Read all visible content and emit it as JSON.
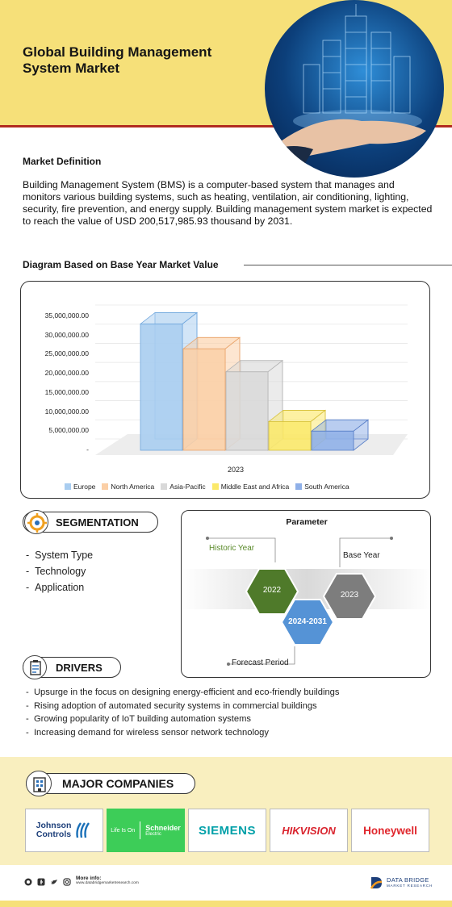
{
  "header": {
    "title_line1": "Global Building Management",
    "title_line2": "System Market"
  },
  "definition": {
    "heading": "Market Definition",
    "text": "Building Management System (BMS) is a computer-based system that manages and monitors various building systems, such as heating, ventilation, air conditioning, lighting, security, fire prevention, and energy supply. Building management system market is expected to reach the value of USD 200,517,985.93 thousand by 2031."
  },
  "diagram": {
    "heading": "Diagram Based on Base Year Market Value"
  },
  "chart_data": {
    "type": "bar",
    "categories": [
      "2023"
    ],
    "series": [
      {
        "name": "Europe",
        "values": [
          33000000
        ],
        "color": "#a9cdf0"
      },
      {
        "name": "North America",
        "values": [
          26500000
        ],
        "color": "#fbcfa6"
      },
      {
        "name": "Asia-Pacific",
        "values": [
          20500000
        ],
        "color": "#d9d9d9"
      },
      {
        "name": "Middle East and Africa",
        "values": [
          7500000
        ],
        "color": "#fbe96a"
      },
      {
        "name": "South America",
        "values": [
          5000000
        ],
        "color": "#8fb0e8"
      }
    ],
    "yticks": [
      "35,000,000.00",
      "30,000,000.00",
      "25,000,000.00",
      "20,000,000.00",
      "15,000,000.00",
      "10,000,000.00",
      "5,000,000.00",
      "-"
    ],
    "ylim": [
      0,
      35000000
    ],
    "legend_position": "bottom"
  },
  "segmentation": {
    "label": "SEGMENTATION",
    "items": [
      "System Type",
      "Technology",
      "Application"
    ]
  },
  "parameter": {
    "title": "Parameter",
    "historic_label": "Historic Year",
    "historic_value": "2022",
    "forecast_label": "Forecast Period",
    "forecast_value": "2024-2031",
    "base_label": "Base Year",
    "base_value": "2023"
  },
  "drivers": {
    "label": "DRIVERS",
    "items": [
      "Upsurge in the focus on designing energy-efficient and eco-friendly buildings",
      "Rising adoption of automated security systems in commercial buildings",
      "Growing popularity of IoT building automation systems",
      "Increasing demand for wireless sensor network technology"
    ]
  },
  "companies": {
    "label": "MAJOR COMPANIES",
    "johnson1": "Johnson",
    "johnson2": "Controls",
    "schneider_tag": "Life Is On",
    "schneider_name": "Schneider",
    "schneider_sub": "Electric",
    "siemens": "SIEMENS",
    "hikvision": "HIKVISION",
    "honeywell": "Honeywell"
  },
  "footer": {
    "more_info": "More info:",
    "url": "www.databridgemarketresearch.com",
    "brand1": "DATA BRIDGE",
    "brand2": "MARKET RESEARCH"
  }
}
